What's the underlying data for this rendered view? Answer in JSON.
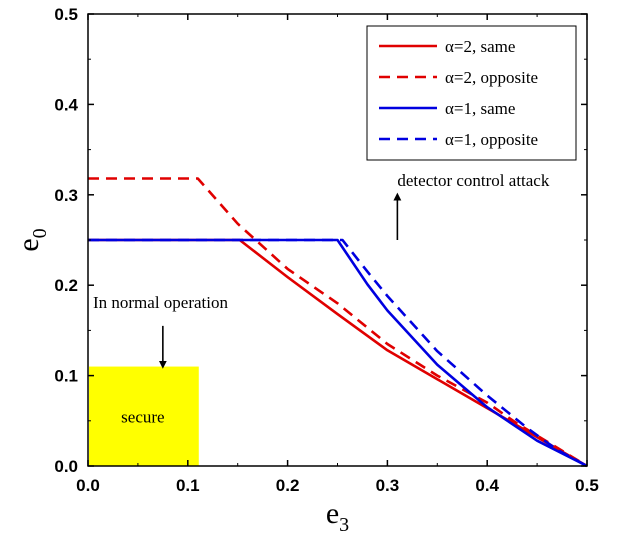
{
  "chart_data": {
    "type": "line",
    "xlabel": {
      "main": "e",
      "sub": "3"
    },
    "ylabel": {
      "main": "e",
      "sub": "0"
    },
    "xlim": [
      0.0,
      0.5
    ],
    "ylim": [
      0.0,
      0.5
    ],
    "xticks": [
      "0.0",
      "0.1",
      "0.2",
      "0.3",
      "0.4",
      "0.5"
    ],
    "yticks": [
      "0.0",
      "0.1",
      "0.2",
      "0.3",
      "0.4",
      "0.5"
    ],
    "grid": false,
    "legend_position": "top-right",
    "series": [
      {
        "name": "α=2, same",
        "color": "#e00000",
        "dash": "solid",
        "points": [
          [
            0.0,
            0.25
          ],
          [
            0.152,
            0.25
          ],
          [
            0.2,
            0.209
          ],
          [
            0.25,
            0.168
          ],
          [
            0.3,
            0.128
          ],
          [
            0.35,
            0.096
          ],
          [
            0.4,
            0.064
          ],
          [
            0.45,
            0.032
          ],
          [
            0.5,
            0.0
          ]
        ]
      },
      {
        "name": "α=2, opposite",
        "color": "#e00000",
        "dash": "dashed",
        "points": [
          [
            0.0,
            0.318
          ],
          [
            0.11,
            0.318
          ],
          [
            0.15,
            0.268
          ],
          [
            0.2,
            0.218
          ],
          [
            0.25,
            0.18
          ],
          [
            0.3,
            0.135
          ],
          [
            0.35,
            0.1
          ],
          [
            0.4,
            0.07
          ],
          [
            0.43,
            0.047
          ],
          [
            0.46,
            0.027
          ],
          [
            0.5,
            0.0
          ]
        ]
      },
      {
        "name": "α=1, same",
        "color": "#0000e0",
        "dash": "solid",
        "points": [
          [
            0.0,
            0.25
          ],
          [
            0.25,
            0.25
          ],
          [
            0.28,
            0.201
          ],
          [
            0.3,
            0.172
          ],
          [
            0.35,
            0.112
          ],
          [
            0.4,
            0.065
          ],
          [
            0.45,
            0.028
          ],
          [
            0.5,
            0.0
          ]
        ]
      },
      {
        "name": "α=1, opposite",
        "color": "#0000e0",
        "dash": "dashed",
        "points": [
          [
            0.0,
            0.25
          ],
          [
            0.255,
            0.25
          ],
          [
            0.28,
            0.215
          ],
          [
            0.3,
            0.188
          ],
          [
            0.35,
            0.127
          ],
          [
            0.4,
            0.078
          ],
          [
            0.44,
            0.042
          ],
          [
            0.47,
            0.018
          ],
          [
            0.5,
            0.0
          ]
        ]
      }
    ],
    "annotations": [
      {
        "text": "detector control attack",
        "x": 0.31,
        "y": 0.31,
        "arrow_from": [
          0.31,
          0.25
        ],
        "arrow_to": [
          0.31,
          0.298
        ]
      },
      {
        "text": "In normal operation",
        "x": 0.005,
        "y": 0.175,
        "arrow_from": [
          0.075,
          0.155
        ],
        "arrow_to": [
          0.075,
          0.112
        ]
      }
    ],
    "region": {
      "label": "secure",
      "x_range": [
        0.0,
        0.11
      ],
      "y_range": [
        0.0,
        0.11
      ],
      "color": "#ffff00"
    }
  }
}
